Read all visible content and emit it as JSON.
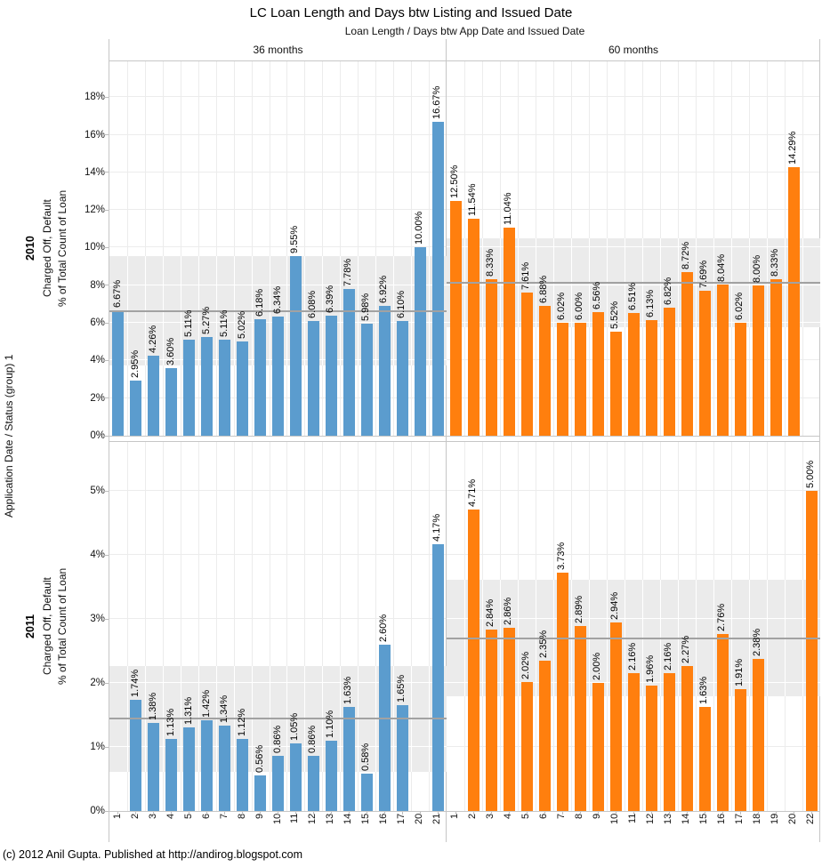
{
  "title": "LC Loan Length and Days btw Listing and Issued Date",
  "subtitle": "Loan Length  /  Days btw App Date and Issued Date",
  "row_axis_title": "Application Date  /  Status (group) 1",
  "measure_title": [
    "Charged Off, Default",
    "% of Total Count of Loan"
  ],
  "footer": "(c) 2012 Anil Gupta. Published at http://andirog.blogspot.com",
  "columns": [
    {
      "label": "36 months"
    },
    {
      "label": "60 months"
    }
  ],
  "rows": [
    {
      "label": "2010"
    },
    {
      "label": "2011"
    }
  ],
  "colors": {
    "blue": "#5B9CCE",
    "orange": "#FF7F0E",
    "band": "#ebebeb",
    "reference_line": "#a2a2a2",
    "grid": "#ececec",
    "border": "#c6c6c6"
  },
  "chart_data": [
    {
      "type": "bar",
      "row": "2010",
      "column": "36 months",
      "series_color": "#5B9CCE",
      "categories": [
        "1",
        "2",
        "3",
        "4",
        "5",
        "6",
        "7",
        "8",
        "9",
        "10",
        "11",
        "12",
        "13",
        "14",
        "15",
        "16",
        "17",
        "20",
        "21"
      ],
      "values": [
        6.67,
        2.95,
        4.26,
        3.6,
        5.11,
        5.27,
        5.11,
        5.02,
        6.18,
        6.34,
        9.55,
        6.08,
        6.39,
        7.78,
        5.98,
        6.92,
        6.1,
        10.0,
        16.67
      ],
      "bar_labels": [
        "6.67%",
        "2.95%",
        "4.26%",
        "3.60%",
        "5.11%",
        "5.27%",
        "5.11%",
        "5.02%",
        "6.18%",
        "6.34%",
        "9.55%",
        "6.08%",
        "6.39%",
        "7.78%",
        "5.98%",
        "6.92%",
        "6.10%",
        "10.00%",
        "16.67%"
      ],
      "average_line": 6.63,
      "band": [
        3.72,
        9.54
      ],
      "ylim": [
        0,
        19.9
      ],
      "yticks": [
        0,
        2,
        4,
        6,
        8,
        10,
        12,
        14,
        16,
        18
      ],
      "ytick_labels": [
        "0%",
        "2%",
        "4%",
        "6%",
        "8%",
        "10%",
        "12%",
        "14%",
        "16%",
        "18%"
      ]
    },
    {
      "type": "bar",
      "row": "2010",
      "column": "60 months",
      "series_color": "#FF7F0E",
      "categories": [
        "1",
        "2",
        "3",
        "4",
        "5",
        "6",
        "7",
        "8",
        "9",
        "10",
        "11",
        "12",
        "13",
        "14",
        "15",
        "16",
        "17",
        "18",
        "19",
        "20",
        "22"
      ],
      "values": [
        12.5,
        11.54,
        8.33,
        11.04,
        7.61,
        6.88,
        6.02,
        6.0,
        6.56,
        5.52,
        6.51,
        6.13,
        6.82,
        8.72,
        7.69,
        8.04,
        6.02,
        8.0,
        8.33,
        14.29,
        null
      ],
      "bar_labels": [
        "12.50%",
        "11.54%",
        "8.33%",
        "11.04%",
        "7.61%",
        "6.88%",
        "6.02%",
        "6.00%",
        "6.56%",
        "5.52%",
        "6.51%",
        "6.13%",
        "6.82%",
        "8.72%",
        "7.69%",
        "8.04%",
        "6.02%",
        "8.00%",
        "8.33%",
        "14.29%",
        ""
      ],
      "average_line": 8.13,
      "band": [
        5.78,
        10.48
      ],
      "ylim": [
        0,
        19.9
      ],
      "yticks": [
        0,
        2,
        4,
        6,
        8,
        10,
        12,
        14,
        16,
        18
      ],
      "ytick_labels": [
        "0%",
        "2%",
        "4%",
        "6%",
        "8%",
        "10%",
        "12%",
        "14%",
        "16%",
        "18%"
      ]
    },
    {
      "type": "bar",
      "row": "2011",
      "column": "36 months",
      "series_color": "#5B9CCE",
      "categories": [
        "1",
        "2",
        "3",
        "4",
        "5",
        "6",
        "7",
        "8",
        "9",
        "10",
        "11",
        "12",
        "13",
        "14",
        "15",
        "16",
        "17",
        "20",
        "21"
      ],
      "values": [
        null,
        1.74,
        1.38,
        1.13,
        1.31,
        1.42,
        1.34,
        1.12,
        0.56,
        0.86,
        1.05,
        0.86,
        1.1,
        1.63,
        0.58,
        2.6,
        1.65,
        null,
        4.17
      ],
      "bar_labels": [
        "",
        "1.74%",
        "1.38%",
        "1.13%",
        "1.31%",
        "1.42%",
        "1.34%",
        "1.12%",
        "0.56%",
        "0.86%",
        "1.05%",
        "0.86%",
        "1.10%",
        "1.63%",
        "0.58%",
        "2.60%",
        "1.65%",
        "",
        "4.17%"
      ],
      "average_line": 1.44,
      "band": [
        0.61,
        2.27
      ],
      "ylim": [
        0,
        5.78
      ],
      "yticks": [
        0,
        1,
        2,
        3,
        4,
        5
      ],
      "ytick_labels": [
        "0%",
        "1%",
        "2%",
        "3%",
        "4%",
        "5%"
      ]
    },
    {
      "type": "bar",
      "row": "2011",
      "column": "60 months",
      "series_color": "#FF7F0E",
      "categories": [
        "1",
        "2",
        "3",
        "4",
        "5",
        "6",
        "7",
        "8",
        "9",
        "10",
        "11",
        "12",
        "13",
        "14",
        "15",
        "16",
        "17",
        "18",
        "19",
        "20",
        "22"
      ],
      "values": [
        null,
        4.71,
        2.84,
        2.86,
        2.02,
        2.35,
        3.73,
        2.89,
        2.0,
        2.94,
        2.16,
        1.96,
        2.16,
        2.27,
        1.63,
        2.76,
        1.91,
        2.38,
        null,
        null,
        5.0
      ],
      "bar_labels": [
        "",
        "4.71%",
        "2.84%",
        "2.86%",
        "2.02%",
        "2.35%",
        "3.73%",
        "2.89%",
        "2.00%",
        "2.94%",
        "2.16%",
        "1.96%",
        "2.16%",
        "2.27%",
        "1.63%",
        "2.76%",
        "1.91%",
        "2.38%",
        "",
        "",
        "5.00%"
      ],
      "average_line": 2.7,
      "band": [
        1.79,
        3.61
      ],
      "ylim": [
        0,
        5.78
      ],
      "yticks": [
        0,
        1,
        2,
        3,
        4,
        5
      ],
      "ytick_labels": [
        "0%",
        "1%",
        "2%",
        "3%",
        "4%",
        "5%"
      ]
    }
  ]
}
